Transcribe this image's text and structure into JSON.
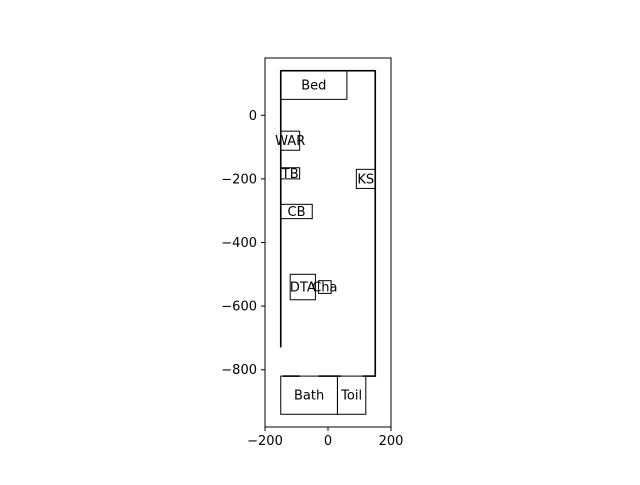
{
  "chart_data": {
    "type": "floorplan",
    "xlim": [
      -200,
      200
    ],
    "ylim": [
      -980,
      180
    ],
    "x_ticks": [
      {
        "value": -200,
        "label": "−200"
      },
      {
        "value": 0,
        "label": "0"
      },
      {
        "value": 200,
        "label": "200"
      }
    ],
    "y_ticks": [
      {
        "value": 0,
        "label": "0"
      },
      {
        "value": -200,
        "label": "−200"
      },
      {
        "value": -400,
        "label": "−400"
      },
      {
        "value": -600,
        "label": "−600"
      },
      {
        "value": -800,
        "label": "−800"
      }
    ],
    "room_outline": {
      "x0": -150,
      "y0": -820,
      "x1": 150,
      "y1": 140
    },
    "door_gaps": [
      {
        "side": "left",
        "y_from": -820,
        "y_to": -730
      },
      {
        "side": "bottom",
        "x_from": -90,
        "x_to": -30
      },
      {
        "side": "bottom",
        "x_from": 40,
        "x_to": 110
      }
    ],
    "furniture": [
      {
        "id": "bed",
        "label": "Bed",
        "x0": -150,
        "y0": 50,
        "x1": 60,
        "y1": 140
      },
      {
        "id": "war",
        "label": "WAR",
        "x0": -150,
        "y0": -110,
        "x1": -90,
        "y1": -50
      },
      {
        "id": "tb",
        "label": "TB",
        "x0": -150,
        "y0": -200,
        "x1": -90,
        "y1": -165
      },
      {
        "id": "ks",
        "label": "KS",
        "x0": 90,
        "y0": -230,
        "x1": 150,
        "y1": -170
      },
      {
        "id": "cb",
        "label": "CB",
        "x0": -150,
        "y0": -325,
        "x1": -50,
        "y1": -280
      },
      {
        "id": "dt",
        "label": "DTA",
        "x0": -120,
        "y0": -580,
        "x1": -40,
        "y1": -500
      },
      {
        "id": "cha",
        "label": "Cha",
        "x0": -30,
        "y0": -560,
        "x1": 10,
        "y1": -520
      },
      {
        "id": "bath",
        "label": "Bath",
        "x0": -150,
        "y0": -940,
        "x1": 30,
        "y1": -820
      },
      {
        "id": "toil",
        "label": "Toil",
        "x0": 30,
        "y0": -940,
        "x1": 120,
        "y1": -820
      }
    ]
  }
}
